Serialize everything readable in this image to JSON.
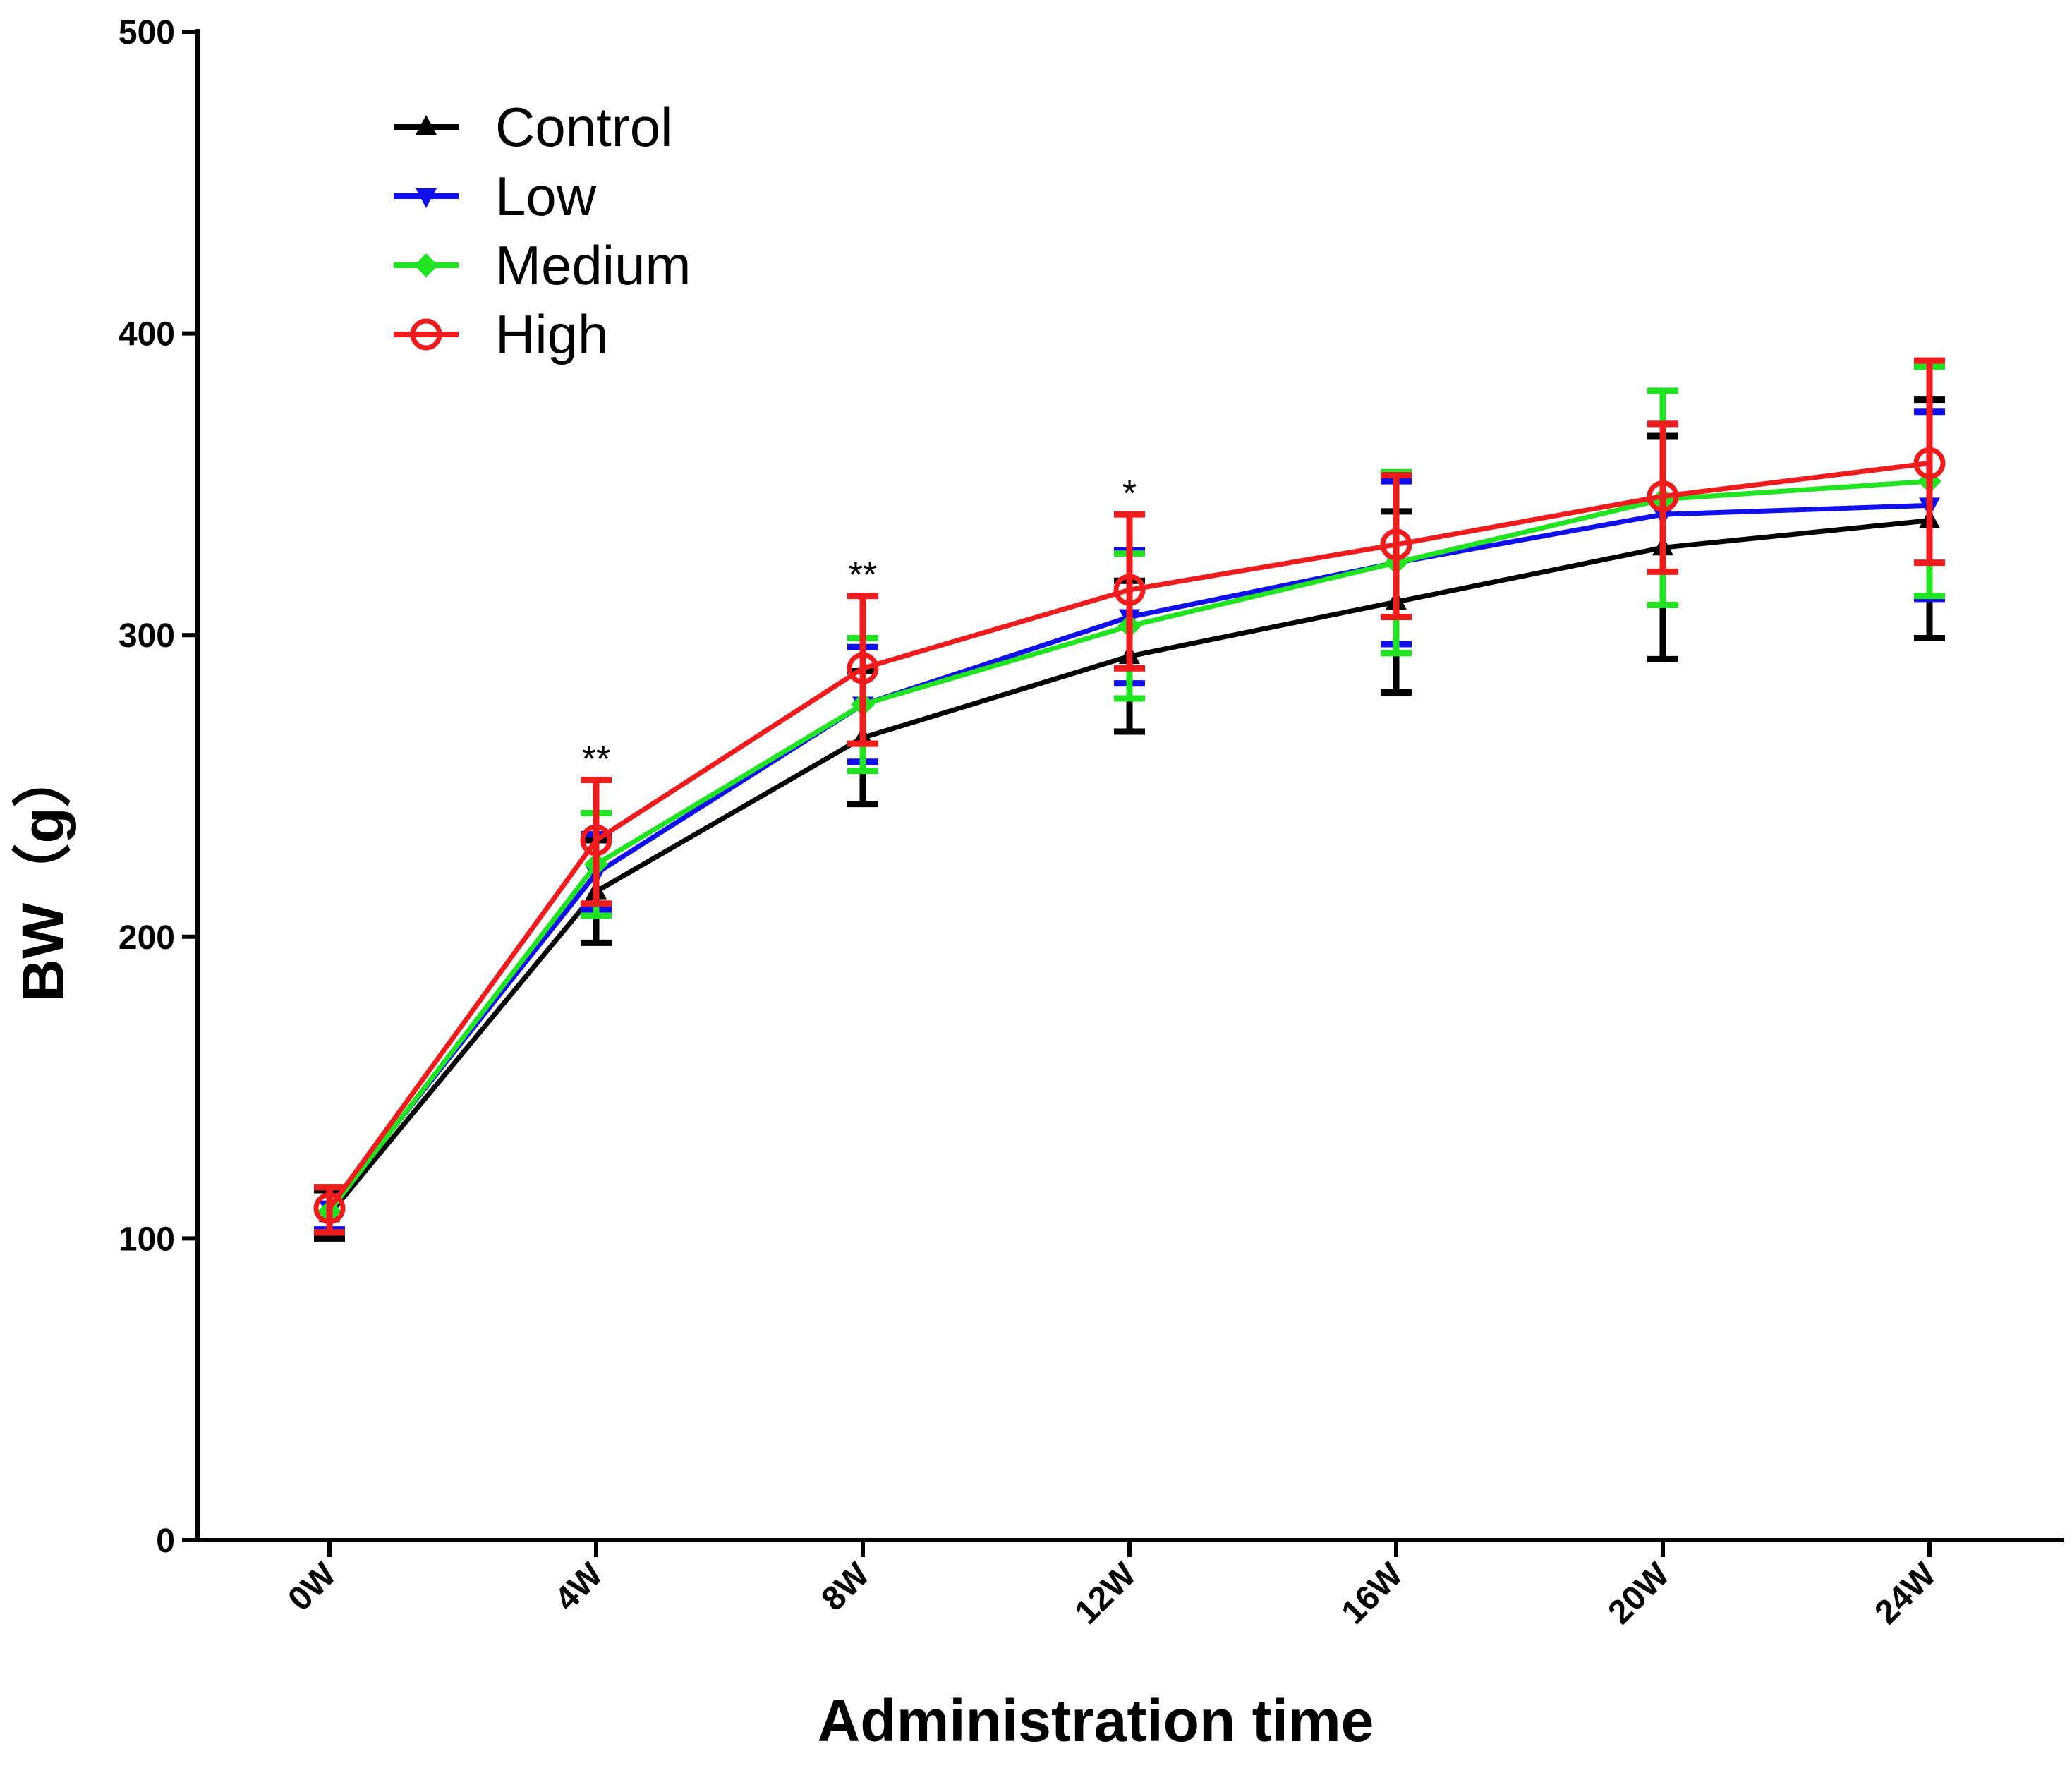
{
  "chart_data": {
    "type": "line",
    "title": "",
    "xlabel": "Administration time",
    "ylabel": "BW（g）",
    "ylim": [
      0,
      500
    ],
    "yticks": [
      0,
      100,
      200,
      300,
      400,
      500
    ],
    "categories": [
      "0W",
      "4W",
      "8W",
      "12W",
      "16W",
      "20W",
      "24W"
    ],
    "legend_position": "top-left",
    "series": [
      {
        "name": "Control",
        "color": "#000000",
        "marker": "triangle-up",
        "values": [
          108,
          215,
          266,
          293,
          311,
          329,
          338
        ],
        "err_low": [
          100,
          198,
          244,
          268,
          281,
          292,
          299
        ],
        "err_high": [
          116,
          232,
          288,
          318,
          341,
          366,
          378
        ]
      },
      {
        "name": "Low",
        "color": "#1010ee",
        "marker": "triangle-down",
        "values": [
          110,
          221,
          277,
          306,
          324,
          340,
          343
        ],
        "err_low": [
          103,
          209,
          258,
          284,
          297,
          310,
          312
        ],
        "err_high": [
          117,
          234,
          296,
          328,
          351,
          370,
          374
        ]
      },
      {
        "name": "Medium",
        "color": "#22e322",
        "marker": "diamond",
        "values": [
          109,
          224,
          277,
          303,
          324,
          345,
          351
        ],
        "err_low": [
          102,
          207,
          255,
          279,
          294,
          310,
          313
        ],
        "err_high": [
          117,
          241,
          299,
          327,
          354,
          381,
          389
        ]
      },
      {
        "name": "High",
        "color": "#ee1c1c",
        "marker": "circle-open",
        "values": [
          110,
          232,
          289,
          315,
          330,
          346,
          357
        ],
        "err_low": [
          102,
          211,
          264,
          289,
          306,
          321,
          324
        ],
        "err_high": [
          117,
          252,
          313,
          340,
          353,
          370,
          391
        ]
      }
    ],
    "annotations": [
      {
        "category": "4W",
        "text": "**",
        "y": 259
      },
      {
        "category": "8W",
        "text": "**",
        "y": 320
      },
      {
        "category": "12W",
        "text": "*",
        "y": 347
      }
    ]
  }
}
